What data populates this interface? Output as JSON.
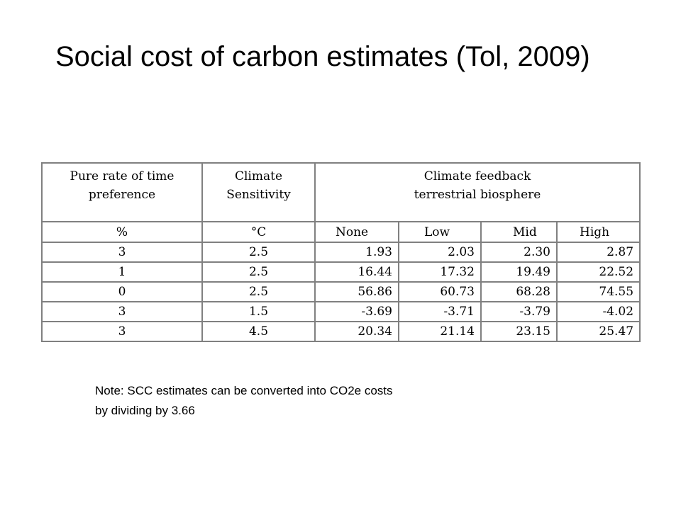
{
  "title": "Social cost of carbon estimates (Tol, 2009)",
  "table": {
    "header": {
      "col1": [
        "Pure rate of time",
        "preference"
      ],
      "col2": [
        "Climate",
        "Sensitivity"
      ],
      "col3": [
        "Climate feedback",
        "terrestrial biosphere"
      ]
    },
    "units": [
      "%",
      "°C",
      "None",
      "Low",
      "Mid",
      "High"
    ],
    "rows": [
      [
        "3",
        "2.5",
        "1.93",
        "2.03",
        "2.30",
        "2.87"
      ],
      [
        "1",
        "2.5",
        "16.44",
        "17.32",
        "19.49",
        "22.52"
      ],
      [
        "0",
        "2.5",
        "56.86",
        "60.73",
        "68.28",
        "74.55"
      ],
      [
        "3",
        "1.5",
        "-3.69",
        "-3.71",
        "-3.79",
        "-4.02"
      ],
      [
        "3",
        "4.5",
        "20.34",
        "21.14",
        "23.15",
        "25.47"
      ]
    ]
  },
  "note": {
    "line1": "Note: SCC estimates can be converted into CO2e costs",
    "line2": "by dividing by 3.66"
  }
}
